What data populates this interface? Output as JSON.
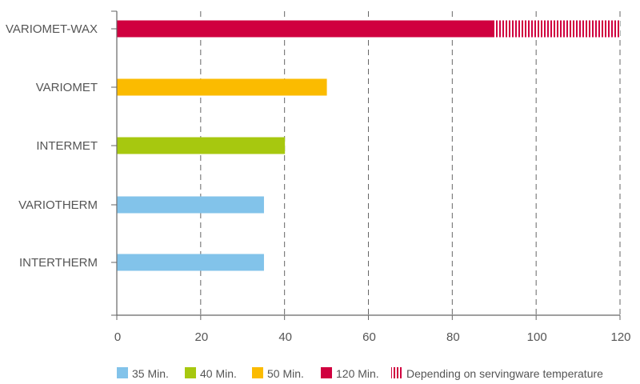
{
  "chart_data": {
    "type": "bar",
    "orientation": "horizontal",
    "categories": [
      "VARIOMET-WAX",
      "VARIOMET",
      "INTERMET",
      "VARIOTHERM",
      "INTERTHERM"
    ],
    "values": [
      90,
      50,
      40,
      35,
      35
    ],
    "extension": {
      "category": "VARIOMET-WAX",
      "from": 90,
      "to": 120
    },
    "bar_colors": [
      "#d0003f",
      "#fbbb00",
      "#a7c80f",
      "#82c3ea",
      "#82c3ea"
    ],
    "xlim": [
      0,
      120
    ],
    "xticks": [
      0,
      20,
      40,
      60,
      80,
      100,
      120
    ],
    "grid": "vertical dashed",
    "legend_position": "bottom",
    "legend": [
      {
        "label": "35 Min.",
        "color": "#82c3ea",
        "style": "solid"
      },
      {
        "label": "40 Min.",
        "color": "#a7c80f",
        "style": "solid"
      },
      {
        "label": "50 Min.",
        "color": "#fbbb00",
        "style": "solid"
      },
      {
        "label": "120 Min.",
        "color": "#d0003f",
        "style": "solid"
      },
      {
        "label": "Depending on servingware temperature",
        "color": "#d0003f",
        "style": "hatched"
      }
    ]
  }
}
